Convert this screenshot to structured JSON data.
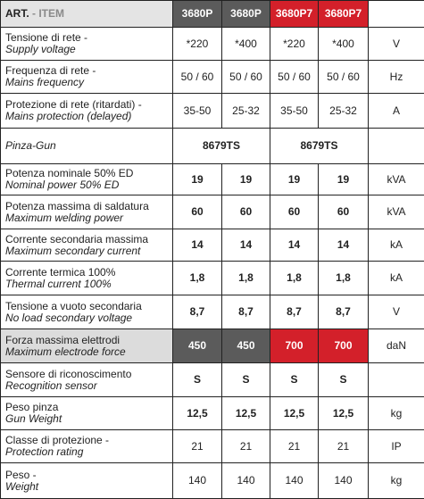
{
  "table": {
    "header": {
      "label": "ART.",
      "label_suffix": "- ITEM",
      "columns": [
        "3680P",
        "3680P",
        "3680P7",
        "3680P7"
      ]
    },
    "rows": [
      {
        "label": "Tensione di rete -",
        "label_en": "Supply voltage",
        "values": [
          "*220",
          "*400",
          "*220",
          "*400"
        ],
        "unit": "V"
      },
      {
        "label": "Frequenza di rete -",
        "label_en": "Mains frequency",
        "values": [
          "50 / 60",
          "50 / 60",
          "50 / 60",
          "50 / 60"
        ],
        "unit": "Hz"
      },
      {
        "label": "Protezione di rete (ritardati) -",
        "label_en": "Mains protection (delayed)",
        "values": [
          "35-50",
          "25-32",
          "35-50",
          "25-32"
        ],
        "unit": "A"
      },
      {
        "label_en": "Pinza-Gun",
        "values": [
          "8679TS",
          "8679TS"
        ]
      },
      {
        "label": "Potenza nominale 50% ED",
        "label_en": "Nominal power 50% ED",
        "values": [
          "19",
          "19",
          "19",
          "19"
        ],
        "unit": "kVA"
      },
      {
        "label": "Potenza massima di saldatura",
        "label_en": "Maximum welding power",
        "values": [
          "60",
          "60",
          "60",
          "60"
        ],
        "unit": "kVA"
      },
      {
        "label": "Corrente secondaria massima",
        "label_en": "Maximum secondary current",
        "values": [
          "14",
          "14",
          "14",
          "14"
        ],
        "unit": "kA"
      },
      {
        "label": "Corrente termica 100%",
        "label_en": "Thermal current 100%",
        "values": [
          "1,8",
          "1,8",
          "1,8",
          "1,8"
        ],
        "unit": "kA"
      },
      {
        "label": "Tensione a vuoto secondaria",
        "label_en": "No load secondary voltage",
        "values": [
          "8,7",
          "8,7",
          "8,7",
          "8,7"
        ],
        "unit": "V"
      },
      {
        "label": "Forza massima elettrodi",
        "label_en": "Maximum electrode force",
        "values": [
          "450",
          "450",
          "700",
          "700"
        ],
        "unit": "daN"
      },
      {
        "label": "Sensore di riconoscimento",
        "label_en": "Recognition sensor",
        "values": [
          "S",
          "S",
          "S",
          "S"
        ]
      },
      {
        "label": "Peso pinza",
        "label_en": "Gun Weight",
        "values": [
          "12,5",
          "12,5",
          "12,5",
          "12,5"
        ],
        "unit": "kg"
      },
      {
        "label": "Classe di protezione -",
        "label_en": "Protection rating",
        "values": [
          "21",
          "21",
          "21",
          "21"
        ],
        "unit": "IP"
      },
      {
        "label": "Peso -",
        "label_en": "Weight",
        "values": [
          "140",
          "140",
          "140",
          "140"
        ],
        "unit": "kg"
      }
    ]
  }
}
